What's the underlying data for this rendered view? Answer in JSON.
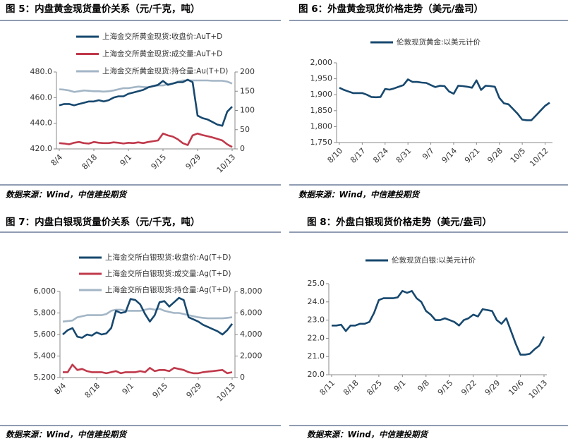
{
  "chart_data": [
    {
      "type": "line",
      "title": "图 5：内盘黄金现货量价关系（元/千克，吨）",
      "source": "数据来源：Wind，中信建投期货",
      "categories": [
        "8/4",
        null,
        null,
        null,
        null,
        null,
        null,
        "8/18",
        null,
        null,
        null,
        null,
        null,
        null,
        "9/1",
        null,
        null,
        null,
        null,
        null,
        null,
        "9/15",
        null,
        null,
        null,
        null,
        null,
        null,
        "9/29",
        null,
        null,
        null,
        null,
        null,
        null,
        "10/13"
      ],
      "series": [
        {
          "name": "上海金交所黄金现货:收盘价:AuT+D",
          "color": "#17486e",
          "values": [
            454,
            455,
            455,
            454,
            455,
            456,
            457,
            457,
            458,
            457,
            458,
            460,
            461,
            461,
            463,
            464,
            465,
            466,
            468,
            469,
            470,
            473,
            470,
            471,
            472,
            472,
            474,
            472,
            446,
            444,
            443,
            441,
            439,
            438,
            449,
            453
          ]
        },
        {
          "name": "上海金交所黄金现货:成交量:AuT+D",
          "color": "#c0394b",
          "axis": "y2",
          "values": [
            15,
            14,
            12,
            16,
            18,
            15,
            14,
            18,
            16,
            15,
            15,
            17,
            16,
            14,
            16,
            15,
            17,
            15,
            18,
            20,
            22,
            40,
            35,
            32,
            25,
            15,
            10,
            35,
            40,
            36,
            33,
            30,
            26,
            22,
            12,
            5
          ]
        },
        {
          "name": "上海金交所黄金现货:持仓量:Au(T+D)",
          "color": "#a3b6c6",
          "axis": "y2",
          "values": [
            155,
            154,
            152,
            148,
            150,
            152,
            151,
            150,
            150,
            149,
            150,
            152,
            155,
            158,
            158,
            160,
            162,
            161,
            160,
            163,
            165,
            165,
            168,
            170,
            175,
            178,
            178,
            178,
            178,
            178,
            178,
            177,
            177,
            177,
            175,
            170
          ]
        }
      ],
      "ylim": [
        420,
        480
      ],
      "yticks": [
        {
          "value": 420,
          "label": "420.0"
        },
        {
          "value": 440,
          "label": "440.0"
        },
        {
          "value": 460,
          "label": "460.0"
        },
        {
          "value": 480,
          "label": "480.0"
        }
      ],
      "y2lim": [
        0,
        200
      ],
      "y2ticks": [
        0,
        50,
        100,
        150,
        200
      ]
    },
    {
      "type": "line",
      "title": "图 6：外盘黄金现货价格走势（美元/盎司）",
      "source": "数据来源：Wind，中信建投期货",
      "categories": [
        "8/10",
        null,
        null,
        null,
        null,
        "8/17",
        null,
        null,
        null,
        null,
        "8/24",
        null,
        null,
        null,
        null,
        "8/31",
        null,
        null,
        null,
        null,
        "9/7",
        null,
        null,
        null,
        null,
        "9/14",
        null,
        null,
        null,
        null,
        "9/21",
        null,
        null,
        null,
        null,
        "9/28",
        null,
        null,
        null,
        null,
        "10/5",
        null,
        null,
        null,
        null,
        "10/12",
        null
      ],
      "series": [
        {
          "name": "伦敦现货黄金:以美元计价",
          "color": "#17486e",
          "values": [
            1922,
            1915,
            1910,
            1905,
            1905,
            1905,
            1900,
            1893,
            1892,
            1893,
            1918,
            1916,
            1920,
            1925,
            1930,
            1948,
            1940,
            1940,
            1938,
            1937,
            1930,
            1924,
            1928,
            1927,
            1910,
            1903,
            1928,
            1927,
            1925,
            1922,
            1945,
            1915,
            1928,
            1927,
            1925,
            1890,
            1873,
            1870,
            1855,
            1840,
            1822,
            1820,
            1820,
            1835,
            1850,
            1865,
            1875
          ]
        }
      ],
      "ylim": [
        1750,
        2000
      ],
      "yticks": [
        {
          "value": 1750,
          "label": "1,750"
        },
        {
          "value": 1800,
          "label": "1,800"
        },
        {
          "value": 1850,
          "label": "1,850"
        },
        {
          "value": 1900,
          "label": "1,900"
        },
        {
          "value": 1950,
          "label": "1,950"
        },
        {
          "value": 2000,
          "label": "2,000"
        }
      ]
    },
    {
      "type": "line",
      "title": "图 7：内盘白银现货量价关系（元/千克，吨）",
      "source": "数据来源：Wind，中信建投期货",
      "categories": [
        "8/4",
        null,
        null,
        null,
        null,
        null,
        null,
        "8/18",
        null,
        null,
        null,
        null,
        null,
        null,
        "9/1",
        null,
        null,
        null,
        null,
        null,
        null,
        "9/15",
        null,
        null,
        null,
        null,
        null,
        null,
        "9/29",
        null,
        null,
        null,
        null,
        null,
        null,
        "10/13"
      ],
      "series": [
        {
          "name": "上海金交所白银现货:收盘价:Ag(T+D)",
          "color": "#17486e",
          "values": [
            5600,
            5640,
            5660,
            5580,
            5570,
            5600,
            5590,
            5620,
            5600,
            5610,
            5660,
            5820,
            5800,
            5810,
            5930,
            5920,
            5880,
            5790,
            5720,
            5780,
            5900,
            5910,
            5860,
            5900,
            5940,
            5920,
            5760,
            5740,
            5720,
            5690,
            5670,
            5650,
            5630,
            5600,
            5640,
            5700
          ]
        },
        {
          "name": "上海金交所白银现货:成交量:Ag(T+D)",
          "color": "#c0394b",
          "axis": "y2",
          "values": [
            500,
            500,
            1200,
            700,
            800,
            600,
            500,
            500,
            500,
            400,
            500,
            600,
            400,
            500,
            500,
            500,
            600,
            500,
            900,
            600,
            700,
            700,
            600,
            900,
            800,
            700,
            500,
            400,
            400,
            500,
            550,
            600,
            650,
            700,
            400,
            500
          ]
        },
        {
          "name": "上海金交所白银现货:持仓量:Ag(T+D)",
          "color": "#a3b6c6",
          "axis": "y2",
          "values": [
            5200,
            5250,
            5300,
            5600,
            5700,
            5800,
            5800,
            5800,
            5800,
            5900,
            6200,
            6300,
            6300,
            6200,
            6200,
            6200,
            6200,
            6300,
            6400,
            6300,
            6400,
            6200,
            6100,
            6000,
            6000,
            5900,
            5800,
            5700,
            5600,
            5550,
            5500,
            5500,
            5500,
            5500,
            5550,
            5600
          ]
        }
      ],
      "ylim": [
        5200,
        6000
      ],
      "yticks": [
        {
          "value": 5200,
          "label": "5,200"
        },
        {
          "value": 5400,
          "label": "5,400"
        },
        {
          "value": 5600,
          "label": "5,600"
        },
        {
          "value": 5800,
          "label": "5,800"
        },
        {
          "value": 6000,
          "label": "6,000"
        }
      ],
      "y2lim": [
        0,
        8000
      ],
      "y2ticks": [
        0,
        {
          "value": 2000,
          "label": "2,000"
        },
        {
          "value": 4000,
          "label": "4,000"
        },
        {
          "value": 6000,
          "label": "6,000"
        },
        {
          "value": 8000,
          "label": "8,000"
        }
      ]
    },
    {
      "type": "line",
      "title": "图 8：外盘白银现货价格走势（美元/盎司）",
      "source": "数据来源：Wind，中信建投期货",
      "categories": [
        "8/11",
        null,
        null,
        null,
        null,
        "8/18",
        null,
        null,
        null,
        null,
        "8/25",
        null,
        null,
        null,
        null,
        "9/1",
        null,
        null,
        null,
        null,
        "9/8",
        null,
        null,
        null,
        null,
        "9/15",
        null,
        null,
        null,
        null,
        "9/22",
        null,
        null,
        null,
        null,
        "9/29",
        null,
        null,
        null,
        null,
        "10/6",
        null,
        null,
        null,
        null,
        "10/13"
      ],
      "series": [
        {
          "name": "伦敦现货白银:以美元计价",
          "color": "#17486e",
          "values": [
            22.7,
            22.7,
            22.75,
            22.4,
            22.7,
            22.7,
            22.8,
            22.8,
            22.9,
            23.4,
            24.1,
            24.2,
            24.2,
            24.2,
            24.25,
            24.6,
            24.5,
            24.6,
            24.2,
            24.0,
            23.5,
            23.3,
            23.0,
            23.0,
            23.1,
            23.0,
            22.9,
            22.7,
            23.0,
            23.1,
            23.3,
            23.2,
            23.6,
            23.55,
            23.5,
            23.0,
            22.8,
            23.1,
            22.4,
            21.7,
            21.1,
            21.1,
            21.15,
            21.4,
            21.6,
            22.1
          ]
        }
      ],
      "ylim": [
        20,
        25
      ],
      "yticks": [
        {
          "value": 20,
          "label": "20.0"
        },
        {
          "value": 21,
          "label": "21.0"
        },
        {
          "value": 22,
          "label": "22.0"
        },
        {
          "value": 23,
          "label": "23.0"
        },
        {
          "value": 24,
          "label": "24.0"
        },
        {
          "value": 25,
          "label": "25.0"
        }
      ]
    }
  ]
}
